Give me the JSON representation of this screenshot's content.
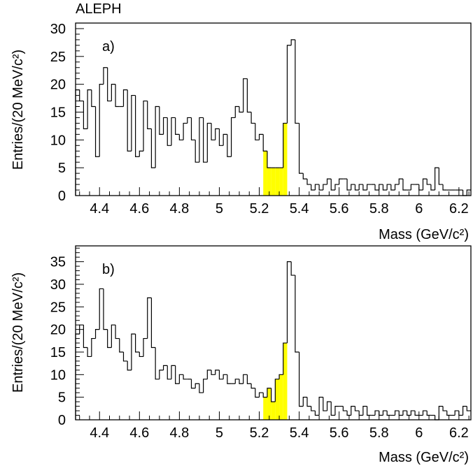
{
  "experiment": "ALEPH",
  "colors": {
    "signal_fill": "#ffff00",
    "line": "#000000",
    "background": "#ffffff"
  },
  "chart_data": [
    {
      "type": "bar",
      "panel_label": "a)",
      "xlabel": "Mass (GeV/c²)",
      "ylabel": "Entries/(20 MeV/c²)",
      "xlim": [
        4.28,
        6.26
      ],
      "ylim": [
        0,
        31
      ],
      "bin_width": 0.02,
      "xticks": [
        4.4,
        4.6,
        4.8,
        5,
        5.2,
        5.4,
        5.6,
        5.8,
        6,
        6.2
      ],
      "yticks": [
        0,
        5,
        10,
        15,
        20,
        25,
        30
      ],
      "signal_region": [
        5.22,
        5.34
      ],
      "bins": [
        [
          4.28,
          19
        ],
        [
          4.3,
          17
        ],
        [
          4.32,
          12
        ],
        [
          4.34,
          19
        ],
        [
          4.36,
          16
        ],
        [
          4.38,
          7
        ],
        [
          4.4,
          20
        ],
        [
          4.42,
          23
        ],
        [
          4.44,
          17
        ],
        [
          4.46,
          20
        ],
        [
          4.48,
          16
        ],
        [
          4.5,
          16
        ],
        [
          4.52,
          19
        ],
        [
          4.54,
          8
        ],
        [
          4.56,
          18
        ],
        [
          4.58,
          7
        ],
        [
          4.6,
          8
        ],
        [
          4.62,
          17
        ],
        [
          4.64,
          12
        ],
        [
          4.66,
          5
        ],
        [
          4.68,
          16
        ],
        [
          4.7,
          11
        ],
        [
          4.72,
          14
        ],
        [
          4.74,
          9
        ],
        [
          4.76,
          14
        ],
        [
          4.78,
          11
        ],
        [
          4.8,
          10
        ],
        [
          4.82,
          13
        ],
        [
          4.84,
          14
        ],
        [
          4.86,
          10
        ],
        [
          4.88,
          6
        ],
        [
          4.9,
          14
        ],
        [
          4.92,
          6
        ],
        [
          4.94,
          13
        ],
        [
          4.96,
          10
        ],
        [
          4.98,
          12
        ],
        [
          5.0,
          9
        ],
        [
          5.02,
          11
        ],
        [
          5.04,
          7
        ],
        [
          5.06,
          14
        ],
        [
          5.08,
          16
        ],
        [
          5.1,
          15
        ],
        [
          5.12,
          21
        ],
        [
          5.14,
          15
        ],
        [
          5.16,
          13
        ],
        [
          5.18,
          10
        ],
        [
          5.2,
          11
        ],
        [
          5.22,
          8
        ],
        [
          5.24,
          5
        ],
        [
          5.26,
          5
        ],
        [
          5.28,
          5
        ],
        [
          5.3,
          5
        ],
        [
          5.32,
          13
        ],
        [
          5.34,
          27
        ],
        [
          5.36,
          28
        ],
        [
          5.38,
          13
        ],
        [
          5.4,
          4
        ],
        [
          5.42,
          3
        ],
        [
          5.44,
          2
        ],
        [
          5.46,
          1
        ],
        [
          5.48,
          2
        ],
        [
          5.5,
          1
        ],
        [
          5.52,
          2
        ],
        [
          5.54,
          3
        ],
        [
          5.56,
          1
        ],
        [
          5.58,
          2
        ],
        [
          5.6,
          3
        ],
        [
          5.62,
          3
        ],
        [
          5.64,
          1
        ],
        [
          5.66,
          2
        ],
        [
          5.68,
          1
        ],
        [
          5.7,
          2
        ],
        [
          5.72,
          1
        ],
        [
          5.74,
          2
        ],
        [
          5.76,
          2
        ],
        [
          5.78,
          1
        ],
        [
          5.8,
          2
        ],
        [
          5.82,
          1
        ],
        [
          5.84,
          2
        ],
        [
          5.86,
          1
        ],
        [
          5.88,
          2
        ],
        [
          5.9,
          3
        ],
        [
          5.92,
          1
        ],
        [
          5.94,
          1
        ],
        [
          5.96,
          2
        ],
        [
          5.98,
          2
        ],
        [
          6.0,
          1
        ],
        [
          6.02,
          3
        ],
        [
          6.04,
          2
        ],
        [
          6.06,
          1
        ],
        [
          6.08,
          5
        ],
        [
          6.1,
          2
        ],
        [
          6.12,
          1
        ],
        [
          6.14,
          1
        ],
        [
          6.16,
          1
        ],
        [
          6.18,
          1
        ],
        [
          6.2,
          1
        ],
        [
          6.22,
          0
        ],
        [
          6.24,
          1
        ]
      ]
    },
    {
      "type": "bar",
      "panel_label": "b)",
      "xlabel": "Mass (GeV/c²)",
      "ylabel": "Entries/(20 MeV/c²)",
      "xlim": [
        4.28,
        6.26
      ],
      "ylim": [
        0,
        38.5
      ],
      "bin_width": 0.02,
      "xticks": [
        4.4,
        4.6,
        4.8,
        5,
        5.2,
        5.4,
        5.6,
        5.8,
        6,
        6.2
      ],
      "yticks": [
        0,
        5,
        10,
        15,
        20,
        25,
        30,
        35
      ],
      "signal_region": [
        5.22,
        5.34
      ],
      "bins": [
        [
          4.28,
          19
        ],
        [
          4.3,
          21
        ],
        [
          4.32,
          16
        ],
        [
          4.34,
          14
        ],
        [
          4.36,
          18
        ],
        [
          4.38,
          20
        ],
        [
          4.4,
          29
        ],
        [
          4.42,
          20
        ],
        [
          4.44,
          16
        ],
        [
          4.46,
          21
        ],
        [
          4.48,
          18
        ],
        [
          4.5,
          15
        ],
        [
          4.52,
          13
        ],
        [
          4.54,
          11
        ],
        [
          4.56,
          19
        ],
        [
          4.58,
          15
        ],
        [
          4.6,
          14
        ],
        [
          4.62,
          18
        ],
        [
          4.64,
          27
        ],
        [
          4.66,
          16
        ],
        [
          4.68,
          9
        ],
        [
          4.7,
          11
        ],
        [
          4.72,
          12
        ],
        [
          4.74,
          9
        ],
        [
          4.76,
          12
        ],
        [
          4.78,
          8
        ],
        [
          4.8,
          10
        ],
        [
          4.82,
          9
        ],
        [
          4.84,
          9
        ],
        [
          4.86,
          7
        ],
        [
          4.88,
          8
        ],
        [
          4.9,
          6
        ],
        [
          4.92,
          9
        ],
        [
          4.94,
          11
        ],
        [
          4.96,
          10
        ],
        [
          4.98,
          11
        ],
        [
          5.0,
          9
        ],
        [
          5.02,
          10
        ],
        [
          5.04,
          8
        ],
        [
          5.06,
          8
        ],
        [
          5.08,
          9
        ],
        [
          5.1,
          8
        ],
        [
          5.12,
          10
        ],
        [
          5.14,
          8
        ],
        [
          5.16,
          7
        ],
        [
          5.18,
          5
        ],
        [
          5.2,
          6
        ],
        [
          5.22,
          5
        ],
        [
          5.24,
          7
        ],
        [
          5.26,
          4
        ],
        [
          5.28,
          9
        ],
        [
          5.3,
          10
        ],
        [
          5.32,
          17
        ],
        [
          5.34,
          35
        ],
        [
          5.36,
          32
        ],
        [
          5.38,
          15
        ],
        [
          5.4,
          3
        ],
        [
          5.42,
          5
        ],
        [
          5.44,
          3
        ],
        [
          5.46,
          2
        ],
        [
          5.48,
          1
        ],
        [
          5.5,
          5
        ],
        [
          5.52,
          2
        ],
        [
          5.54,
          4
        ],
        [
          5.56,
          1
        ],
        [
          5.58,
          3
        ],
        [
          5.6,
          3
        ],
        [
          5.62,
          2
        ],
        [
          5.64,
          1
        ],
        [
          5.66,
          3
        ],
        [
          5.68,
          2
        ],
        [
          5.7,
          1
        ],
        [
          5.72,
          3
        ],
        [
          5.74,
          1
        ],
        [
          5.76,
          1
        ],
        [
          5.78,
          2
        ],
        [
          5.8,
          1
        ],
        [
          5.82,
          2
        ],
        [
          5.84,
          1
        ],
        [
          5.86,
          1
        ],
        [
          5.88,
          2
        ],
        [
          5.9,
          1
        ],
        [
          5.92,
          2
        ],
        [
          5.94,
          1
        ],
        [
          5.96,
          2
        ],
        [
          5.98,
          1
        ],
        [
          6.0,
          1
        ],
        [
          6.02,
          2
        ],
        [
          6.04,
          1
        ],
        [
          6.06,
          1
        ],
        [
          6.08,
          0
        ],
        [
          6.1,
          3
        ],
        [
          6.12,
          2
        ],
        [
          6.14,
          1
        ],
        [
          6.16,
          1
        ],
        [
          6.18,
          2
        ],
        [
          6.2,
          1
        ],
        [
          6.22,
          3
        ],
        [
          6.24,
          2
        ]
      ]
    }
  ]
}
